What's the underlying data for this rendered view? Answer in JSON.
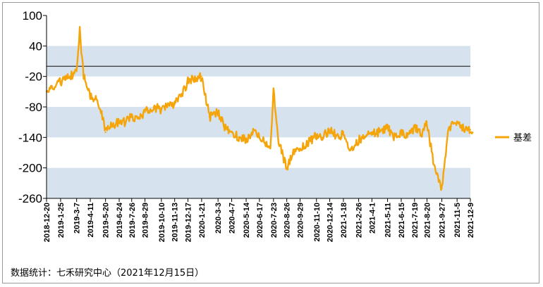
{
  "chart_data": {
    "type": "line",
    "title": "",
    "xlabel": "",
    "ylabel": "",
    "ylim": [
      -260,
      100
    ],
    "yticks": [
      100,
      40,
      -20,
      -80,
      -140,
      -200,
      -260
    ],
    "reference_line": 0,
    "colors": {
      "series": "#f5a50a",
      "band": "#d6e3ef",
      "reference": "#333333"
    },
    "legend": {
      "position": "right"
    },
    "x_tick_labels": [
      "2018-12-20",
      "2019-1-25",
      "2019-3-7",
      "2019-4-11",
      "2019-5-20",
      "2019-6-24",
      "2019-7-26",
      "2019-8-29",
      "2019-10-10",
      "2019-11-13",
      "2019-12-17",
      "2020-1-21",
      "2020-3-3",
      "2020-4-7",
      "2020-5-14",
      "2020-6-17",
      "2020-7-23",
      "2020-8-26",
      "2020-9-29",
      "2020-11-10",
      "2020-12-14",
      "2021-1-18",
      "2021-2-26",
      "2021-4-1",
      "2021-5-11",
      "2021-6-15",
      "2021-7-19",
      "2021-8-20",
      "2021-9-27",
      "2021-11-5",
      "2021-12-9"
    ],
    "series": [
      {
        "name": "基差",
        "x": [
          "2018-12-20",
          "2019-1-8",
          "2019-1-25",
          "2019-2-20",
          "2019-3-7",
          "2019-3-15",
          "2019-3-25",
          "2019-4-11",
          "2019-4-25",
          "2019-5-10",
          "2019-5-20",
          "2019-6-3",
          "2019-6-24",
          "2019-7-10",
          "2019-7-26",
          "2019-8-10",
          "2019-8-29",
          "2019-9-20",
          "2019-10-10",
          "2019-10-25",
          "2019-11-13",
          "2019-11-29",
          "2019-12-17",
          "2019-12-31",
          "2020-1-21",
          "2020-2-10",
          "2020-3-3",
          "2020-3-20",
          "2020-4-7",
          "2020-4-25",
          "2020-5-14",
          "2020-6-1",
          "2020-6-17",
          "2020-7-5",
          "2020-7-15",
          "2020-7-23",
          "2020-8-5",
          "2020-8-26",
          "2020-9-10",
          "2020-9-29",
          "2020-10-20",
          "2020-11-10",
          "2020-11-25",
          "2020-12-14",
          "2021-1-5",
          "2021-1-18",
          "2021-2-5",
          "2021-2-26",
          "2021-3-15",
          "2021-4-1",
          "2021-4-20",
          "2021-5-11",
          "2021-5-25",
          "2021-6-15",
          "2021-7-1",
          "2021-7-19",
          "2021-8-5",
          "2021-8-20",
          "2021-9-5",
          "2021-9-27",
          "2021-10-15",
          "2021-11-5",
          "2021-11-20",
          "2021-12-9",
          "2021-12-15"
        ],
        "values": [
          -50,
          -45,
          -30,
          -20,
          -10,
          70,
          -20,
          -60,
          -65,
          -95,
          -130,
          -115,
          -110,
          -110,
          -100,
          -100,
          -90,
          -80,
          -85,
          -80,
          -75,
          -60,
          -30,
          -25,
          -20,
          -100,
          -90,
          -120,
          -130,
          -140,
          -145,
          -130,
          -140,
          -150,
          -160,
          -45,
          -150,
          -200,
          -170,
          -165,
          -150,
          -135,
          -140,
          -125,
          -140,
          -130,
          -165,
          -145,
          -140,
          -130,
          -130,
          -120,
          -140,
          -130,
          -140,
          -120,
          -135,
          -110,
          -190,
          -240,
          -120,
          -110,
          -120,
          -125,
          -130
        ]
      }
    ]
  },
  "legend": {
    "label": "基差"
  },
  "source": {
    "text": "数据统计：七禾研究中心（2021年12月15日）"
  }
}
